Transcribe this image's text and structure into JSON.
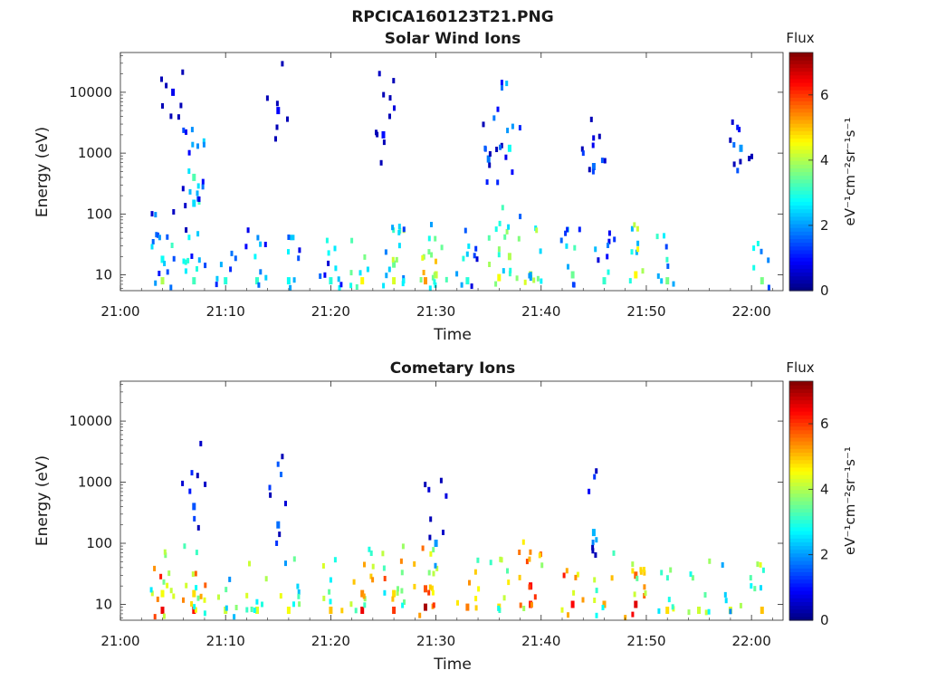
{
  "figure": {
    "title": "RPCICA160123T21.PNG"
  },
  "colorbar": {
    "label": "Flux",
    "unit_html": "eV⁻¹cm⁻²sr⁻¹s⁻¹",
    "ticks": [
      "0",
      "2",
      "4",
      "6"
    ],
    "range": [
      0,
      7.3
    ],
    "colormap": "jet"
  },
  "chart_data": [
    {
      "type": "heatmap",
      "title": "Solar Wind Ions",
      "xlabel": "Time",
      "ylabel": "Energy (eV)",
      "yscale": "log",
      "ylim": [
        5.5,
        45000
      ],
      "xlim_minutes": [
        0,
        63
      ],
      "x_tick_labels": [
        "21:00",
        "21:10",
        "21:20",
        "21:30",
        "21:40",
        "21:50",
        "22:00"
      ],
      "y_tick_labels": [
        "10",
        "100",
        "1000",
        "10000"
      ],
      "cells": [
        {
          "t": "21:04",
          "e": 8,
          "flux": 4.0
        },
        {
          "t": "21:04",
          "e": 18,
          "flux": 2.8
        },
        {
          "t": "21:07",
          "e": 8,
          "flux": 3.2
        },
        {
          "t": "21:07",
          "e": 400,
          "flux": 3.3
        },
        {
          "t": "21:07",
          "e": 150,
          "flux": 2.5
        },
        {
          "t": "21:10",
          "e": 8,
          "flux": 3.0
        },
        {
          "t": "21:13",
          "e": 8,
          "flux": 3.1
        },
        {
          "t": "21:16",
          "e": 8,
          "flux": 2.8
        },
        {
          "t": "21:20",
          "e": 8,
          "flux": 3.0
        },
        {
          "t": "21:23",
          "e": 8,
          "flux": 4.6
        },
        {
          "t": "21:26",
          "e": 8,
          "flux": 4.3
        },
        {
          "t": "21:26",
          "e": 15,
          "flux": 3.5
        },
        {
          "t": "21:29",
          "e": 8,
          "flux": 5.3
        },
        {
          "t": "21:30",
          "e": 10,
          "flux": 4.2
        },
        {
          "t": "21:33",
          "e": 8,
          "flux": 3.0
        },
        {
          "t": "21:36",
          "e": 9,
          "flux": 4.5
        },
        {
          "t": "21:37",
          "e": 20,
          "flux": 4.0
        },
        {
          "t": "21:37",
          "e": 1200,
          "flux": 2.8
        },
        {
          "t": "21:39",
          "e": 10,
          "flux": 4.3
        },
        {
          "t": "21:43",
          "e": 10,
          "flux": 3.5
        },
        {
          "t": "21:46",
          "e": 8,
          "flux": 3.1
        },
        {
          "t": "21:49",
          "e": 10,
          "flux": 4.6
        },
        {
          "t": "21:52",
          "e": 8,
          "flux": 3.6
        },
        {
          "t": "21:59",
          "e": 1200,
          "flux": 2.0
        },
        {
          "t": "22:01",
          "e": 8,
          "flux": 3.6
        },
        {
          "t": "21:05",
          "e": 10000,
          "flux": 0.8
        },
        {
          "t": "21:15",
          "e": 5000,
          "flux": 0.9
        },
        {
          "t": "21:25",
          "e": 2000,
          "flux": 1.0
        },
        {
          "t": "21:35",
          "e": 800,
          "flux": 1.8
        },
        {
          "t": "21:45",
          "e": 600,
          "flux": 1.7
        }
      ]
    },
    {
      "type": "heatmap",
      "title": "Cometary Ions",
      "xlabel": "Time",
      "ylabel": "Energy (eV)",
      "yscale": "log",
      "ylim": [
        5.5,
        45000
      ],
      "xlim_minutes": [
        0,
        63
      ],
      "x_tick_labels": [
        "21:00",
        "21:10",
        "21:20",
        "21:30",
        "21:40",
        "21:50",
        "22:00"
      ],
      "y_tick_labels": [
        "10",
        "100",
        "1000",
        "10000"
      ],
      "cells": [
        {
          "t": "21:04",
          "e": 8,
          "flux": 6.5
        },
        {
          "t": "21:04",
          "e": 15,
          "flux": 4.5
        },
        {
          "t": "21:07",
          "e": 8,
          "flux": 6.3
        },
        {
          "t": "21:07",
          "e": 15,
          "flux": 4.8
        },
        {
          "t": "21:10",
          "e": 8,
          "flux": 4.2
        },
        {
          "t": "21:13",
          "e": 8,
          "flux": 4.3
        },
        {
          "t": "21:16",
          "e": 8,
          "flux": 4.5
        },
        {
          "t": "21:20",
          "e": 8,
          "flux": 5.0
        },
        {
          "t": "21:23",
          "e": 8,
          "flux": 6.5
        },
        {
          "t": "21:23",
          "e": 15,
          "flux": 5.4
        },
        {
          "t": "21:26",
          "e": 8,
          "flux": 6.0
        },
        {
          "t": "21:26",
          "e": 15,
          "flux": 4.8
        },
        {
          "t": "21:29",
          "e": 9,
          "flux": 7.0
        },
        {
          "t": "21:29",
          "e": 18,
          "flux": 5.8
        },
        {
          "t": "21:33",
          "e": 9,
          "flux": 5.5
        },
        {
          "t": "21:36",
          "e": 9,
          "flux": 4.8
        },
        {
          "t": "21:39",
          "e": 10,
          "flux": 6.2
        },
        {
          "t": "21:39",
          "e": 20,
          "flux": 6.4
        },
        {
          "t": "21:43",
          "e": 10,
          "flux": 6.4
        },
        {
          "t": "21:46",
          "e": 10,
          "flux": 5.2
        },
        {
          "t": "21:49",
          "e": 10,
          "flux": 6.6
        },
        {
          "t": "21:49",
          "e": 30,
          "flux": 5.7
        },
        {
          "t": "21:52",
          "e": 8,
          "flux": 4.8
        },
        {
          "t": "21:55",
          "e": 8,
          "flux": 4.2
        },
        {
          "t": "21:58",
          "e": 8,
          "flux": 4.3
        },
        {
          "t": "22:01",
          "e": 8,
          "flux": 5.0
        },
        {
          "t": "21:07",
          "e": 400,
          "flux": 1.5
        },
        {
          "t": "21:15",
          "e": 200,
          "flux": 1.7
        },
        {
          "t": "21:30",
          "e": 100,
          "flux": 2.0
        },
        {
          "t": "21:45",
          "e": 150,
          "flux": 2.2
        }
      ]
    }
  ]
}
